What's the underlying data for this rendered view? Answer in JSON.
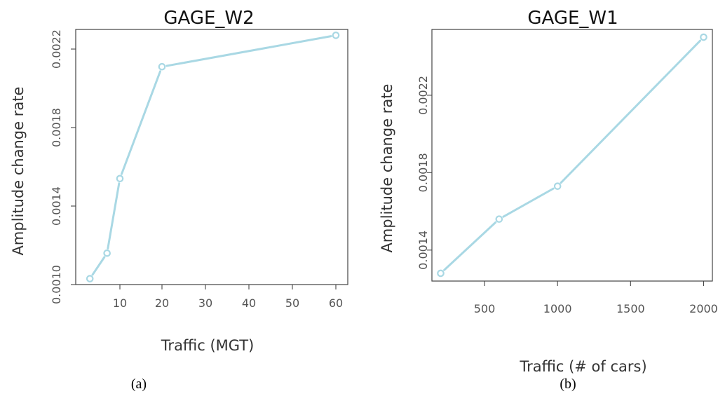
{
  "chart_data": [
    {
      "type": "line",
      "title": "GAGE_W2",
      "xlabel": "Traffic (MGT)",
      "ylabel": "Amplitude change rate",
      "caption": "(a)",
      "x": [
        3,
        7,
        10,
        20,
        60
      ],
      "y": [
        0.00103,
        0.00116,
        0.00154,
        0.00211,
        0.00227
      ],
      "xticks": [
        10,
        20,
        30,
        40,
        50,
        60
      ],
      "xtick_labels": [
        "10",
        "20",
        "30",
        "40",
        "50",
        "60"
      ],
      "yticks": [
        0.001,
        0.0014,
        0.0018,
        0.0022
      ],
      "ytick_labels": [
        "0.0010",
        "0.0014",
        "0.0018",
        "0.0022"
      ],
      "xlim": [
        1,
        62
      ],
      "ylim": [
        0.001,
        0.0023
      ],
      "x_scale": "nonlinear (segmented: 10-20 and 20-60 compressed)",
      "grid": false,
      "marker": "open-circle",
      "line_color": "#a9d8e4"
    },
    {
      "type": "line",
      "title": "GAGE_W1",
      "xlabel": "Traffic (# of cars)",
      "ylabel": "Amplitude change rate",
      "caption": "(b)",
      "x": [
        200,
        600,
        1000,
        2000
      ],
      "y": [
        0.00128,
        0.00156,
        0.00173,
        0.0025
      ],
      "xticks": [
        500,
        1000,
        1500,
        2000
      ],
      "xtick_labels": [
        "500",
        "1000",
        "1500",
        "2000"
      ],
      "yticks": [
        0.0014,
        0.0018,
        0.0022
      ],
      "ytick_labels": [
        "0.0014",
        "0.0018",
        "0.0022"
      ],
      "xlim": [
        140,
        2060
      ],
      "ylim": [
        0.00124,
        0.00254
      ],
      "grid": false,
      "marker": "open-circle",
      "line_color": "#a9d8e4"
    }
  ]
}
